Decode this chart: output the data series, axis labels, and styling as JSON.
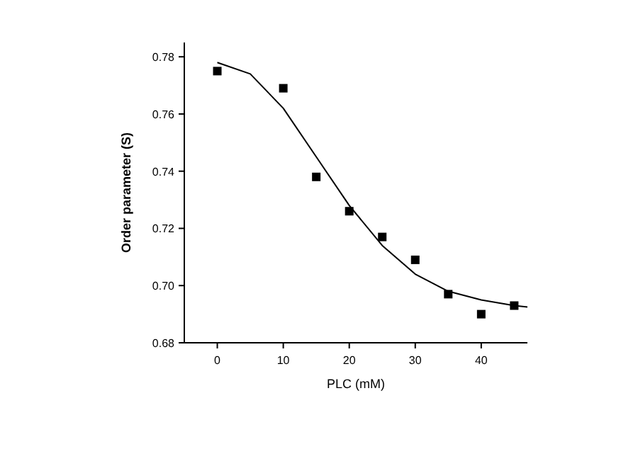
{
  "chart_data": {
    "type": "scatter",
    "xlabel": "PLC (mM)",
    "ylabel": "Order parameter (S)",
    "xlim": [
      -5,
      47
    ],
    "ylim": [
      0.68,
      0.785
    ],
    "xticks": [
      0,
      10,
      20,
      30,
      40
    ],
    "yticks": [
      {
        "value": 0.68,
        "label": "0.68"
      },
      {
        "value": 0.7,
        "label": "0.70"
      },
      {
        "value": 0.72,
        "label": "0.72"
      },
      {
        "value": 0.74,
        "label": "0.74"
      },
      {
        "value": 0.76,
        "label": "0.76"
      },
      {
        "value": 0.78,
        "label": "0.78"
      }
    ],
    "marker": "square",
    "grid": false,
    "series": [
      {
        "color": "#000000",
        "x": [
          0,
          10,
          15,
          20,
          25,
          30,
          35,
          40,
          45
        ],
        "values": [
          0.775,
          0.769,
          0.738,
          0.726,
          0.717,
          0.709,
          0.697,
          0.69,
          0.693
        ]
      },
      {
        "type": "line",
        "color": "#000000",
        "marker": "none",
        "x": [
          0,
          5,
          10,
          15,
          20,
          25,
          30,
          35,
          40,
          45,
          47
        ],
        "values": [
          0.778,
          0.774,
          0.762,
          0.745,
          0.728,
          0.714,
          0.704,
          0.698,
          0.695,
          0.693,
          0.6925
        ]
      }
    ]
  }
}
